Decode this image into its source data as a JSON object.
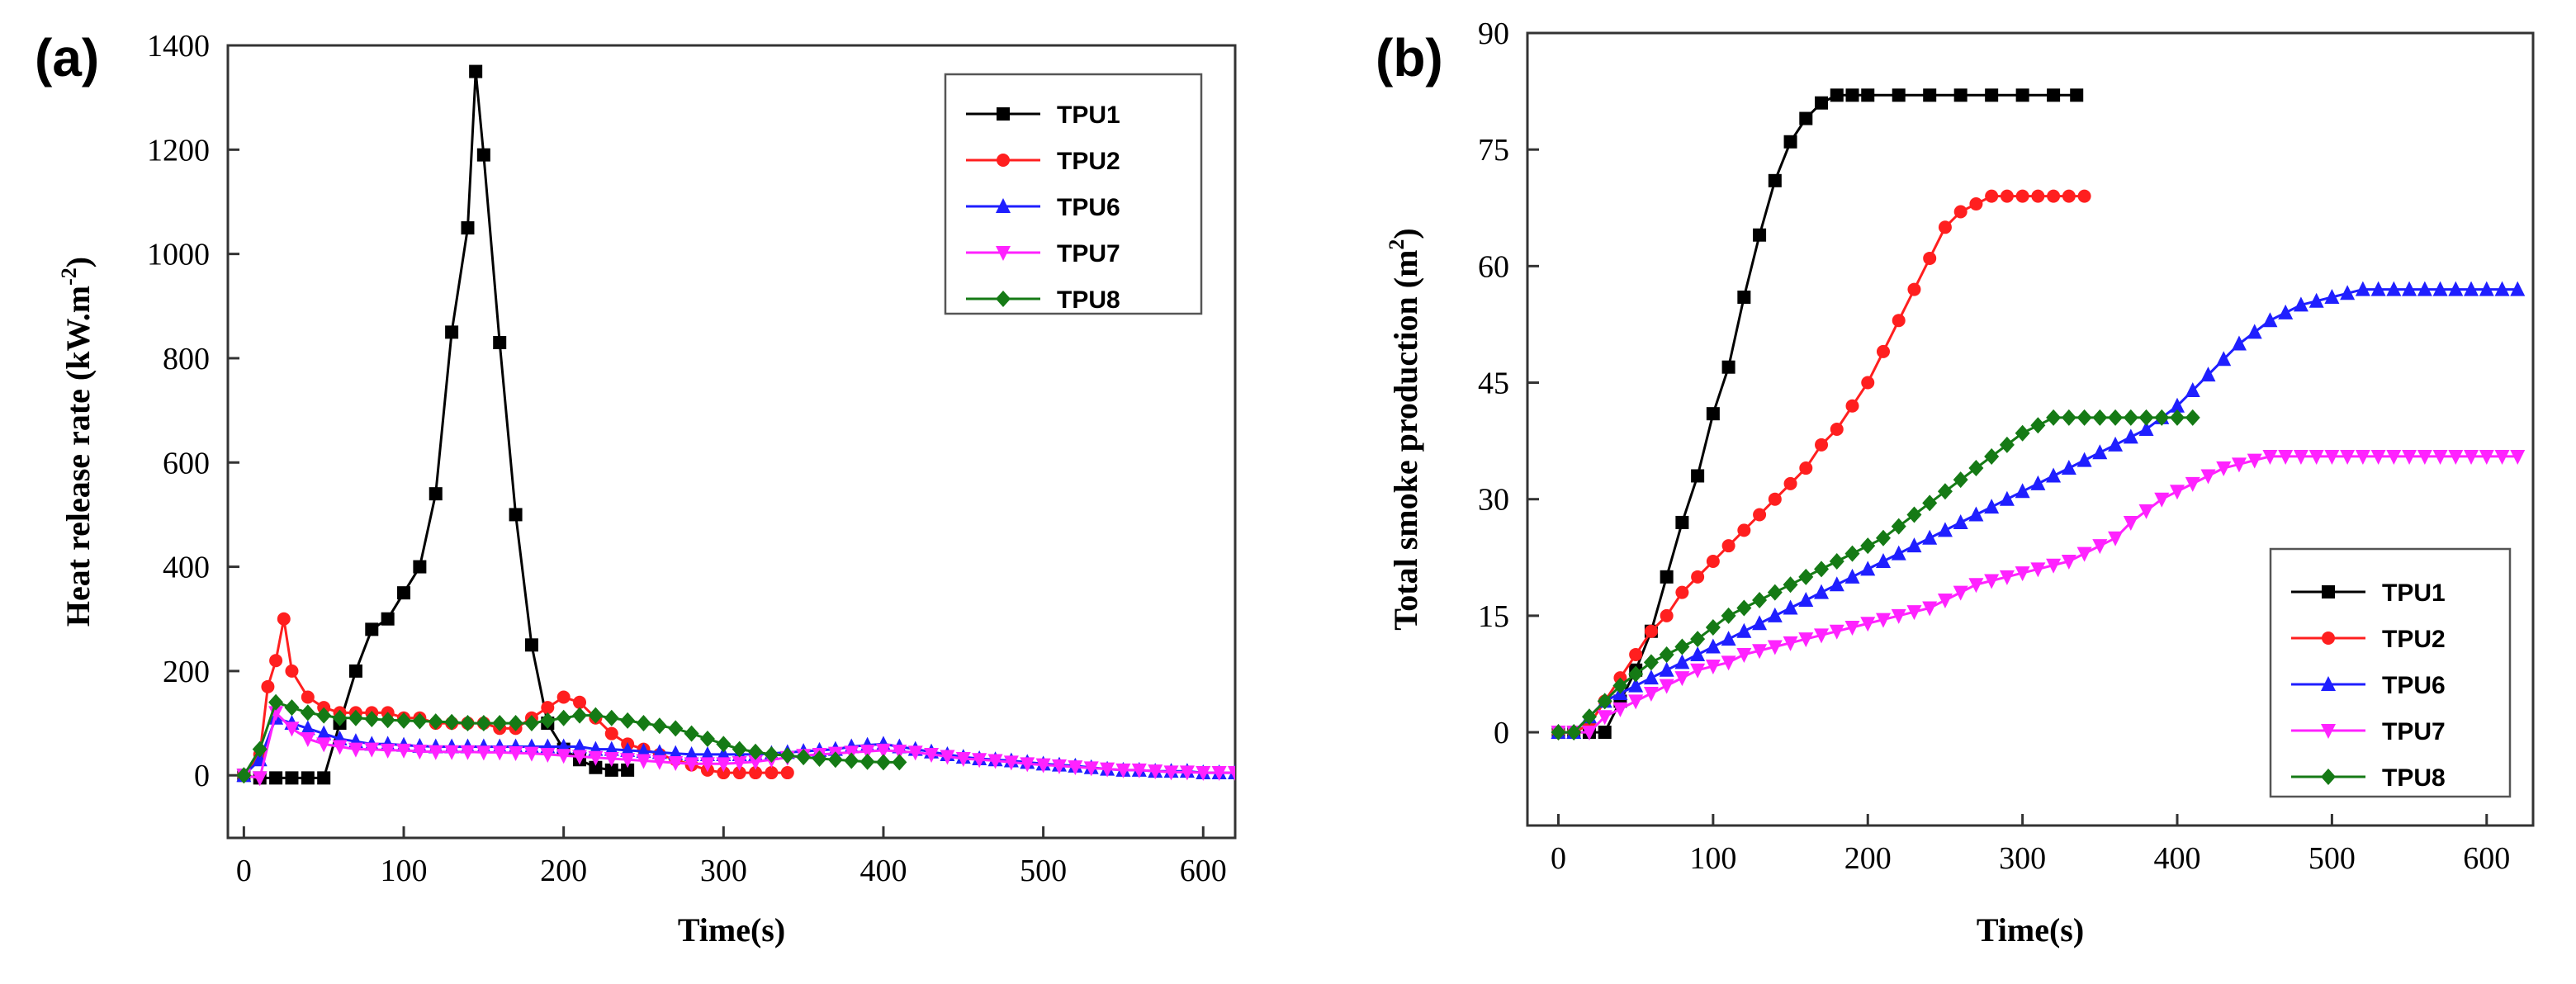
{
  "chart_data": [
    {
      "panel": "(a)",
      "type": "line",
      "title": "",
      "xlabel": "Time(s)",
      "ylabel": "Heat release rate (kW.m",
      "ylabel_sup": "-2",
      "ylabel_close": ")",
      "xlim": [
        -10,
        620
      ],
      "ylim": [
        -120,
        1400
      ],
      "xticks": [
        0,
        100,
        200,
        300,
        400,
        500,
        600
      ],
      "yticks": [
        0,
        200,
        400,
        600,
        800,
        1000,
        1200,
        1400
      ],
      "legend_position": "top-right",
      "series": [
        {
          "name": "TPU1",
          "color": "#000000",
          "marker": "square",
          "x": [
            0,
            10,
            20,
            30,
            40,
            50,
            60,
            70,
            80,
            90,
            100,
            110,
            120,
            130,
            140,
            145,
            150,
            160,
            170,
            180,
            190,
            200,
            210,
            220,
            230,
            240
          ],
          "y": [
            0,
            -5,
            -5,
            -5,
            -5,
            -5,
            100,
            200,
            280,
            300,
            350,
            400,
            540,
            850,
            1050,
            1350,
            1190,
            830,
            500,
            250,
            100,
            50,
            30,
            15,
            10,
            10
          ]
        },
        {
          "name": "TPU2",
          "color": "#ff1f1f",
          "marker": "circle",
          "x": [
            0,
            10,
            15,
            20,
            25,
            30,
            40,
            50,
            60,
            70,
            80,
            90,
            100,
            110,
            120,
            130,
            140,
            150,
            160,
            170,
            180,
            190,
            200,
            210,
            220,
            230,
            240,
            250,
            260,
            270,
            280,
            290,
            300,
            310,
            320,
            330,
            340
          ],
          "y": [
            0,
            40,
            170,
            220,
            300,
            200,
            150,
            130,
            120,
            120,
            120,
            120,
            110,
            110,
            100,
            100,
            100,
            100,
            90,
            90,
            110,
            130,
            150,
            140,
            110,
            80,
            60,
            50,
            40,
            30,
            20,
            10,
            5,
            5,
            5,
            5,
            5
          ]
        },
        {
          "name": "TPU6",
          "color": "#1f1fff",
          "marker": "triangle-up",
          "x": [
            0,
            10,
            20,
            30,
            40,
            50,
            60,
            70,
            80,
            90,
            100,
            110,
            120,
            130,
            140,
            150,
            160,
            170,
            180,
            190,
            200,
            210,
            220,
            230,
            240,
            250,
            260,
            270,
            280,
            290,
            300,
            310,
            320,
            330,
            340,
            350,
            360,
            370,
            380,
            390,
            400,
            410,
            420,
            430,
            440,
            450,
            460,
            470,
            480,
            490,
            500,
            510,
            520,
            530,
            540,
            550,
            560,
            570,
            580,
            590,
            600,
            610,
            620
          ],
          "y": [
            0,
            30,
            110,
            100,
            90,
            80,
            70,
            65,
            60,
            60,
            58,
            56,
            55,
            55,
            55,
            55,
            55,
            55,
            55,
            55,
            55,
            55,
            50,
            50,
            48,
            46,
            44,
            42,
            40,
            40,
            40,
            40,
            40,
            42,
            44,
            46,
            48,
            50,
            55,
            58,
            60,
            55,
            50,
            45,
            40,
            35,
            32,
            30,
            28,
            25,
            22,
            20,
            18,
            15,
            12,
            10,
            10,
            8,
            8,
            8,
            5,
            5,
            5
          ]
        },
        {
          "name": "TPU7",
          "color": "#ff22ff",
          "marker": "triangle-down",
          "x": [
            0,
            10,
            20,
            30,
            40,
            50,
            60,
            70,
            80,
            90,
            100,
            110,
            120,
            130,
            140,
            150,
            160,
            170,
            180,
            190,
            200,
            210,
            220,
            230,
            240,
            250,
            260,
            270,
            280,
            290,
            300,
            310,
            320,
            330,
            340,
            350,
            360,
            370,
            380,
            390,
            400,
            410,
            420,
            430,
            440,
            450,
            460,
            470,
            480,
            490,
            500,
            510,
            520,
            530,
            540,
            550,
            560,
            570,
            580,
            590,
            600,
            610,
            620
          ],
          "y": [
            0,
            -5,
            120,
            90,
            70,
            60,
            55,
            50,
            50,
            48,
            48,
            46,
            45,
            45,
            45,
            44,
            44,
            43,
            42,
            40,
            38,
            36,
            34,
            32,
            30,
            28,
            26,
            24,
            22,
            22,
            22,
            24,
            26,
            30,
            34,
            38,
            40,
            42,
            44,
            46,
            48,
            46,
            44,
            40,
            36,
            32,
            30,
            28,
            25,
            22,
            20,
            18,
            16,
            14,
            12,
            10,
            10,
            8,
            6,
            6,
            5,
            5,
            5
          ]
        },
        {
          "name": "TPU8",
          "color": "#157a15",
          "marker": "diamond",
          "x": [
            0,
            10,
            20,
            30,
            40,
            50,
            60,
            70,
            80,
            90,
            100,
            110,
            120,
            130,
            140,
            150,
            160,
            170,
            180,
            190,
            200,
            210,
            220,
            230,
            240,
            250,
            260,
            270,
            280,
            290,
            300,
            310,
            320,
            330,
            340,
            350,
            360,
            370,
            380,
            390,
            400,
            410
          ],
          "y": [
            0,
            50,
            140,
            130,
            120,
            115,
            110,
            110,
            108,
            106,
            105,
            104,
            103,
            102,
            100,
            100,
            100,
            100,
            100,
            105,
            110,
            115,
            115,
            110,
            105,
            100,
            95,
            90,
            80,
            70,
            60,
            50,
            45,
            40,
            38,
            35,
            32,
            30,
            28,
            26,
            25,
            25
          ]
        }
      ]
    },
    {
      "panel": "(b)",
      "type": "line",
      "title": "",
      "xlabel": "Time(s)",
      "ylabel": "Total smoke production (m",
      "ylabel_sup": "2",
      "ylabel_close": ")",
      "xlim": [
        -20,
        630
      ],
      "ylim": [
        -12,
        90
      ],
      "xticks": [
        0,
        100,
        200,
        300,
        400,
        500,
        600
      ],
      "yticks": [
        0,
        15,
        30,
        45,
        60,
        75,
        90
      ],
      "legend_position": "bottom-right",
      "series": [
        {
          "name": "TPU1",
          "color": "#000000",
          "marker": "square",
          "x": [
            0,
            10,
            20,
            30,
            40,
            50,
            60,
            70,
            80,
            90,
            100,
            110,
            120,
            130,
            140,
            150,
            160,
            170,
            180,
            190,
            200,
            220,
            240,
            260,
            280,
            300,
            320,
            335
          ],
          "y": [
            0,
            0,
            0,
            0,
            4,
            8,
            13,
            20,
            27,
            33,
            41,
            47,
            56,
            64,
            71,
            76,
            79,
            81,
            82,
            82,
            82,
            82,
            82,
            82,
            82,
            82,
            82,
            82
          ]
        },
        {
          "name": "TPU2",
          "color": "#ff1f1f",
          "marker": "circle",
          "x": [
            0,
            10,
            20,
            30,
            40,
            50,
            60,
            70,
            80,
            90,
            100,
            110,
            120,
            130,
            140,
            150,
            160,
            170,
            180,
            190,
            200,
            210,
            220,
            230,
            240,
            250,
            260,
            270,
            280,
            290,
            300,
            310,
            320,
            330,
            340
          ],
          "y": [
            0,
            0,
            1,
            4,
            7,
            10,
            13,
            15,
            18,
            20,
            22,
            24,
            26,
            28,
            30,
            32,
            34,
            37,
            39,
            42,
            45,
            49,
            53,
            57,
            61,
            65,
            67,
            68,
            69,
            69,
            69,
            69,
            69,
            69,
            69
          ]
        },
        {
          "name": "TPU6",
          "color": "#1f1fff",
          "marker": "triangle-up",
          "x": [
            0,
            10,
            20,
            30,
            40,
            50,
            60,
            70,
            80,
            90,
            100,
            110,
            120,
            130,
            140,
            150,
            160,
            170,
            180,
            190,
            200,
            210,
            220,
            230,
            240,
            250,
            260,
            270,
            280,
            290,
            300,
            310,
            320,
            330,
            340,
            350,
            360,
            370,
            380,
            390,
            400,
            410,
            420,
            430,
            440,
            450,
            460,
            470,
            480,
            490,
            500,
            510,
            520,
            530,
            540,
            550,
            560,
            570,
            580,
            590,
            600,
            610,
            620
          ],
          "y": [
            0,
            0,
            2,
            4,
            5,
            6,
            7,
            8,
            9,
            10,
            11,
            12,
            13,
            14,
            15,
            16,
            17,
            18,
            19,
            20,
            21,
            22,
            23,
            24,
            25,
            26,
            27,
            28,
            29,
            30,
            31,
            32,
            33,
            34,
            35,
            36,
            37,
            38,
            39,
            40.5,
            42,
            44,
            46,
            48,
            50,
            51.5,
            53,
            54,
            55,
            55.5,
            56,
            56.5,
            57,
            57,
            57,
            57,
            57,
            57,
            57,
            57,
            57,
            57,
            57
          ]
        },
        {
          "name": "TPU7",
          "color": "#ff22ff",
          "marker": "triangle-down",
          "x": [
            0,
            10,
            20,
            30,
            40,
            50,
            60,
            70,
            80,
            90,
            100,
            110,
            120,
            130,
            140,
            150,
            160,
            170,
            180,
            190,
            200,
            210,
            220,
            230,
            240,
            250,
            260,
            270,
            280,
            290,
            300,
            310,
            320,
            330,
            340,
            350,
            360,
            370,
            380,
            390,
            400,
            410,
            420,
            430,
            440,
            450,
            460,
            470,
            480,
            490,
            500,
            510,
            520,
            530,
            540,
            550,
            560,
            570,
            580,
            590,
            600,
            610,
            620
          ],
          "y": [
            0,
            0,
            0,
            2,
            3,
            4,
            5,
            6,
            7,
            8,
            8.5,
            9,
            10,
            10.5,
            11,
            11.5,
            12,
            12.5,
            13,
            13.5,
            14,
            14.5,
            15,
            15.5,
            16,
            17,
            18,
            19,
            19.5,
            20,
            20.5,
            21,
            21.5,
            22,
            23,
            24,
            25,
            27,
            28.5,
            30,
            31,
            32,
            33,
            34,
            34.5,
            35,
            35.5,
            35.5,
            35.5,
            35.5,
            35.5,
            35.5,
            35.5,
            35.5,
            35.5,
            35.5,
            35.5,
            35.5,
            35.5,
            35.5,
            35.5,
            35.5,
            35.5
          ]
        },
        {
          "name": "TPU8",
          "color": "#157a15",
          "marker": "diamond",
          "x": [
            0,
            10,
            20,
            30,
            40,
            50,
            60,
            70,
            80,
            90,
            100,
            110,
            120,
            130,
            140,
            150,
            160,
            170,
            180,
            190,
            200,
            210,
            220,
            230,
            240,
            250,
            260,
            270,
            280,
            290,
            300,
            310,
            320,
            330,
            340,
            350,
            360,
            370,
            380,
            390,
            400,
            410
          ],
          "y": [
            0,
            0,
            2,
            4,
            6,
            7.5,
            9,
            10,
            11,
            12,
            13.5,
            15,
            16,
            17,
            18,
            19,
            20,
            21,
            22,
            23,
            24,
            25,
            26.5,
            28,
            29.5,
            31,
            32.5,
            34,
            35.5,
            37,
            38.5,
            39.5,
            40.5,
            40.5,
            40.5,
            40.5,
            40.5,
            40.5,
            40.5,
            40.5,
            40.5,
            40.5
          ]
        }
      ]
    }
  ]
}
